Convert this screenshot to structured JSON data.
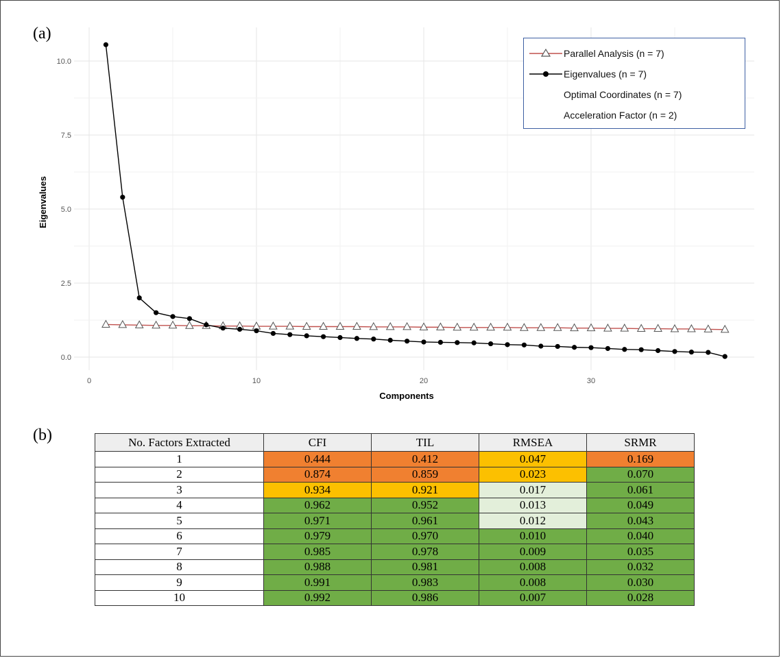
{
  "panels": {
    "a": "(a)",
    "b": "(b)"
  },
  "chart_data": {
    "type": "line",
    "xlabel": "Components",
    "ylabel": "Eigenvalues",
    "xlim": [
      0,
      38
    ],
    "ylim": [
      0,
      10.5
    ],
    "x_ticks": [
      0,
      10,
      20,
      30
    ],
    "y_ticks": [
      "0.0",
      "2.5",
      "5.0",
      "7.5",
      "10.0"
    ],
    "grid": true,
    "legend_position": "top-right",
    "legend": [
      {
        "label": "Parallel Analysis (n = 7)",
        "marker": "triangle",
        "color": "#c0504d"
      },
      {
        "label": "Eigenvalues (n = 7)",
        "marker": "circle",
        "color": "#000000"
      },
      {
        "label": "Optimal Coordinates (n = 7)",
        "marker": "none"
      },
      {
        "label": "Acceleration Factor (n = 2)",
        "marker": "none"
      }
    ],
    "series": [
      {
        "name": "Parallel Analysis (n = 7)",
        "x": [
          1,
          2,
          3,
          4,
          5,
          6,
          7,
          8,
          9,
          10,
          11,
          12,
          13,
          14,
          15,
          16,
          17,
          18,
          19,
          20,
          21,
          22,
          23,
          24,
          25,
          26,
          27,
          28,
          29,
          30,
          31,
          32,
          33,
          34,
          35,
          36,
          37,
          38
        ],
        "values": [
          1.1,
          1.09,
          1.08,
          1.07,
          1.07,
          1.06,
          1.06,
          1.05,
          1.05,
          1.04,
          1.04,
          1.04,
          1.03,
          1.03,
          1.03,
          1.03,
          1.02,
          1.02,
          1.02,
          1.01,
          1.01,
          1.0,
          1.0,
          1.0,
          1.0,
          0.99,
          0.99,
          0.99,
          0.98,
          0.98,
          0.97,
          0.97,
          0.96,
          0.96,
          0.95,
          0.95,
          0.94,
          0.93
        ]
      },
      {
        "name": "Eigenvalues (n = 7)",
        "x": [
          1,
          2,
          3,
          4,
          5,
          6,
          7,
          8,
          9,
          10,
          11,
          12,
          13,
          14,
          15,
          16,
          17,
          18,
          19,
          20,
          21,
          22,
          23,
          24,
          25,
          26,
          27,
          28,
          29,
          30,
          31,
          32,
          33,
          34,
          35,
          36,
          37,
          38
        ],
        "values": [
          10.55,
          5.4,
          2.0,
          1.5,
          1.37,
          1.3,
          1.09,
          0.98,
          0.94,
          0.89,
          0.8,
          0.76,
          0.72,
          0.69,
          0.66,
          0.63,
          0.61,
          0.57,
          0.54,
          0.51,
          0.5,
          0.49,
          0.48,
          0.45,
          0.42,
          0.41,
          0.37,
          0.36,
          0.33,
          0.32,
          0.29,
          0.26,
          0.25,
          0.22,
          0.19,
          0.17,
          0.16,
          0.02
        ]
      }
    ]
  },
  "table": {
    "headers": [
      "No. Factors Extracted",
      "CFI",
      "TIL",
      "RMSEA",
      "SRMR"
    ],
    "rows": [
      [
        "1",
        "0.444",
        "0.412",
        "0.047",
        "0.169"
      ],
      [
        "2",
        "0.874",
        "0.859",
        "0.023",
        "0.070"
      ],
      [
        "3",
        "0.934",
        "0.921",
        "0.017",
        "0.061"
      ],
      [
        "4",
        "0.962",
        "0.952",
        "0.013",
        "0.049"
      ],
      [
        "5",
        "0.971",
        "0.961",
        "0.012",
        "0.043"
      ],
      [
        "6",
        "0.979",
        "0.970",
        "0.010",
        "0.040"
      ],
      [
        "7",
        "0.985",
        "0.978",
        "0.009",
        "0.035"
      ],
      [
        "8",
        "0.988",
        "0.981",
        "0.008",
        "0.032"
      ],
      [
        "9",
        "0.991",
        "0.983",
        "0.008",
        "0.030"
      ],
      [
        "10",
        "0.992",
        "0.986",
        "0.007",
        "0.028"
      ]
    ],
    "cell_colors": [
      [
        "#f08030",
        "#f08030",
        "#fcc000",
        "#f08030"
      ],
      [
        "#f08030",
        "#f08030",
        "#fcc000",
        "#70ad47"
      ],
      [
        "#fcc000",
        "#fcc000",
        "#e3efda",
        "#70ad47"
      ],
      [
        "#70ad47",
        "#70ad47",
        "#e3efda",
        "#70ad47"
      ],
      [
        "#70ad47",
        "#70ad47",
        "#e3efda",
        "#70ad47"
      ],
      [
        "#70ad47",
        "#70ad47",
        "#70ad47",
        "#70ad47"
      ],
      [
        "#70ad47",
        "#70ad47",
        "#70ad47",
        "#70ad47"
      ],
      [
        "#70ad47",
        "#70ad47",
        "#70ad47",
        "#70ad47"
      ],
      [
        "#70ad47",
        "#70ad47",
        "#70ad47",
        "#70ad47"
      ],
      [
        "#70ad47",
        "#70ad47",
        "#70ad47",
        "#70ad47"
      ]
    ]
  }
}
